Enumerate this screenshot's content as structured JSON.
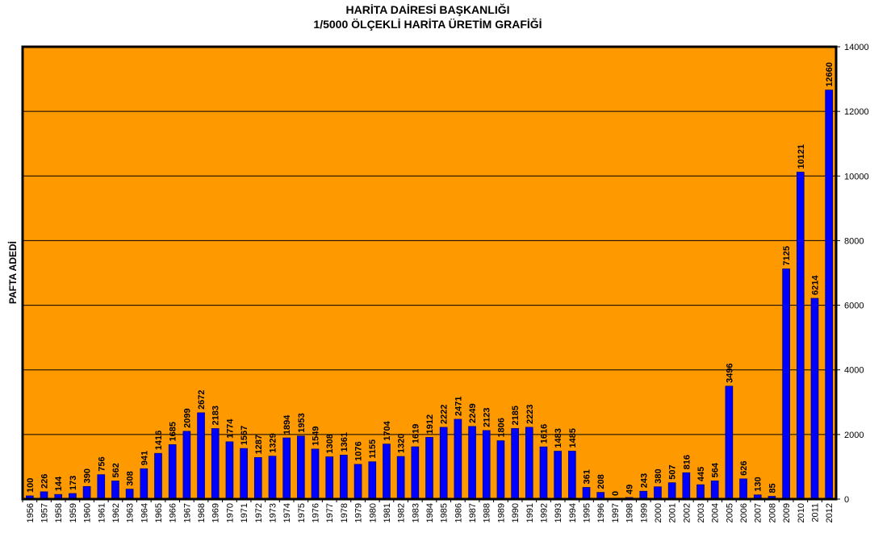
{
  "chart_data": {
    "type": "bar",
    "title": "HARİTA DAİRESİ BAŞKANLIĞI",
    "subtitle": "1/5000 ÖLÇEKLİ HARİTA ÜRETİM GRAFİĞİ",
    "y_label": "PAFTA ADEDİ",
    "categories": [
      "1956",
      "1957",
      "1958",
      "1959",
      "1960",
      "1961",
      "1962",
      "1963",
      "1964",
      "1965",
      "1966",
      "1967",
      "1968",
      "1969",
      "1970",
      "1971",
      "1972",
      "1973",
      "1974",
      "1975",
      "1976",
      "1977",
      "1978",
      "1979",
      "1980",
      "1981",
      "1982",
      "1983",
      "1984",
      "1985",
      "1986",
      "1987",
      "1988",
      "1989",
      "1990",
      "1991",
      "1992",
      "1993",
      "1994",
      "1995",
      "1996",
      "1997",
      "1998",
      "1999",
      "2000",
      "2001",
      "2002",
      "2003",
      "2004",
      "2005",
      "2006",
      "2007",
      "2008",
      "2009",
      "2010",
      "2011",
      "2012"
    ],
    "values": [
      100,
      226,
      144,
      173,
      390,
      756,
      562,
      308,
      941,
      1416,
      1685,
      2099,
      2672,
      2183,
      1774,
      1567,
      1287,
      1329,
      1894,
      1953,
      1549,
      1308,
      1361,
      1076,
      1155,
      1704,
      1320,
      1619,
      1912,
      2222,
      2471,
      2249,
      2123,
      1806,
      2185,
      2223,
      1616,
      1483,
      1485,
      361,
      208,
      0,
      49,
      243,
      380,
      507,
      816,
      445,
      564,
      3496,
      626,
      130,
      85,
      7125,
      10121,
      6214,
      12660
    ],
    "color": "#0000ff",
    "background": "#ff9900",
    "ylim": [
      0,
      14000
    ],
    "yticks": [
      0,
      2000,
      4000,
      6000,
      8000,
      10000,
      12000,
      14000
    ],
    "grid": true,
    "y_axis_side": "right"
  }
}
